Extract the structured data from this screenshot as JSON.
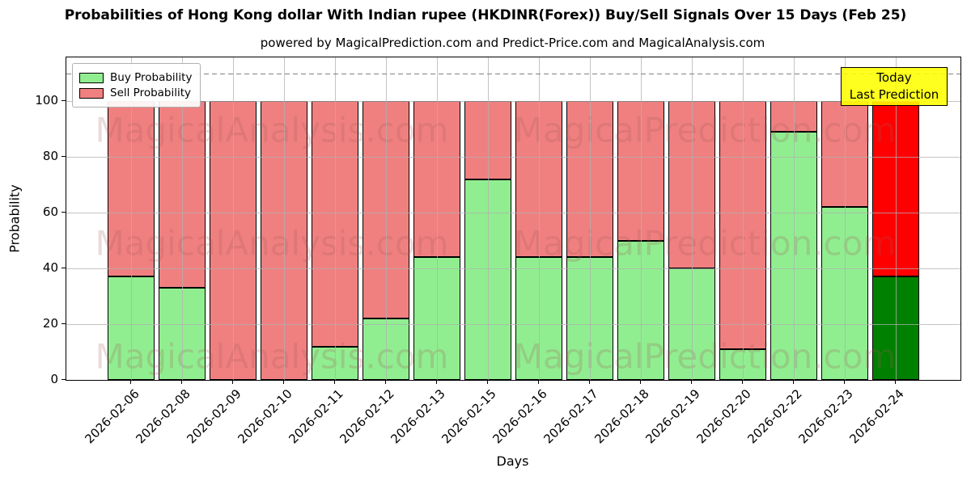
{
  "header": {
    "title": "Probabilities of Hong Kong dollar With Indian rupee (HKDINR(Forex)) Buy/Sell Signals Over 15 Days (Feb 25)",
    "subtitle": "powered by MagicalPrediction.com and Predict-Price.com and MagicalAnalysis.com"
  },
  "legend": {
    "items": [
      {
        "label": "Buy Probability",
        "color": "#90EE90"
      },
      {
        "label": "Sell Probability",
        "color": "#F08080"
      }
    ]
  },
  "annotation": {
    "line1": "Today",
    "line2": "Last Prediction",
    "bg_color": "#FFFF00"
  },
  "axes": {
    "xlabel": "Days",
    "ylabel": "Probability",
    "yticks": [
      0,
      20,
      40,
      60,
      80,
      100
    ]
  },
  "watermarks": {
    "left_text": "MagicalAnalysis.com",
    "right_text": "MagicalPrediction.com"
  },
  "chart_data": {
    "type": "bar",
    "stacked": true,
    "title": "Probabilities of Hong Kong dollar With Indian rupee (HKDINR(Forex)) Buy/Sell Signals Over 15 Days (Feb 25)",
    "xlabel": "Days",
    "ylabel": "Probability",
    "ylim": [
      0,
      116
    ],
    "grid": true,
    "legend_position": "upper left",
    "dashed_line_y": 110,
    "categories": [
      "2026-02-06",
      "2026-02-08",
      "2026-02-09",
      "2026-02-10",
      "2026-02-11",
      "2026-02-12",
      "2026-02-13",
      "2026-02-15",
      "2026-02-16",
      "2026-02-17",
      "2026-02-18",
      "2026-02-19",
      "2026-02-20",
      "2026-02-22",
      "2026-02-23",
      "2026-02-24"
    ],
    "series": [
      {
        "name": "Buy Probability",
        "color": "#90EE90",
        "values": [
          37,
          33,
          0,
          0,
          12,
          22,
          44,
          72,
          44,
          44,
          50,
          40,
          11,
          89,
          62,
          37
        ]
      },
      {
        "name": "Sell Probability",
        "color": "#F08080",
        "values": [
          63,
          67,
          100,
          100,
          88,
          78,
          56,
          28,
          56,
          56,
          50,
          60,
          89,
          11,
          38,
          63
        ]
      }
    ],
    "highlight_last_bar": {
      "buy_color": "#008000",
      "sell_color": "#FF0000"
    }
  }
}
